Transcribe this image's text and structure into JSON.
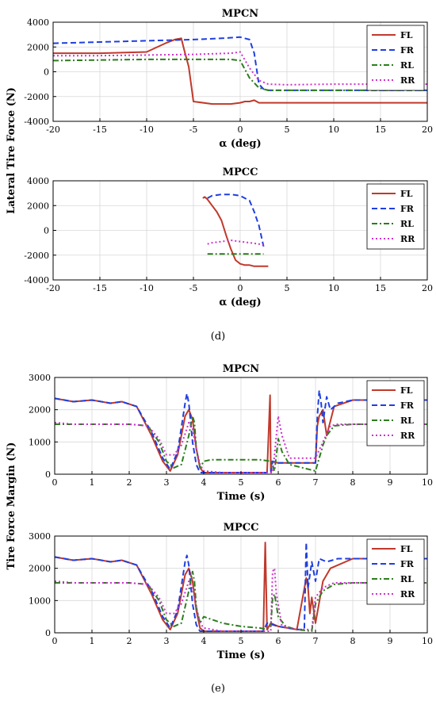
{
  "panel_labels": {
    "d": "(d)",
    "e": "(e)"
  },
  "colors": {
    "FL": "#c0392b",
    "FR": "#1f3fe0",
    "RL": "#2e7d1e",
    "RR": "#cc33cc",
    "grid": "#d8d8d8"
  },
  "chart_data": [
    {
      "id": "d1",
      "type": "line",
      "title": "MPCN",
      "xlabel": "α (deg)",
      "ylabel": "Lateral Tire Force (N)",
      "xlim": [
        -20,
        20
      ],
      "ylim": [
        -4000,
        4000
      ],
      "xticks": [
        -20,
        -15,
        -10,
        -5,
        0,
        5,
        10,
        15,
        20
      ],
      "yticks": [
        -4000,
        -2000,
        0,
        2000,
        4000
      ],
      "grid": true,
      "legend": "top-right",
      "series": [
        {
          "name": "FL",
          "style": "solid",
          "x": [
            -20,
            -15,
            -10,
            -8,
            -7,
            -6.3,
            -6,
            -5.5,
            -5,
            -3,
            -1,
            0,
            0.5,
            1,
            1.5,
            2,
            2.5,
            3,
            5,
            10,
            15,
            20
          ],
          "y": [
            1500,
            1500,
            1600,
            2300,
            2600,
            2700,
            1800,
            400,
            -2400,
            -2600,
            -2600,
            -2500,
            -2400,
            -2400,
            -2300,
            -2500,
            -2500,
            -2500,
            -2500,
            -2500,
            -2500,
            -2500
          ]
        },
        {
          "name": "FR",
          "style": "dashed",
          "x": [
            -20,
            -15,
            -10,
            -5,
            -2,
            0,
            1,
            1.5,
            2,
            2.5,
            3,
            5,
            10,
            15,
            20
          ],
          "y": [
            2300,
            2400,
            2500,
            2600,
            2700,
            2800,
            2600,
            1500,
            -1000,
            -1400,
            -1500,
            -1500,
            -1500,
            -1500,
            -1500
          ]
        },
        {
          "name": "RL",
          "style": "dashdot",
          "x": [
            -20,
            -15,
            -10,
            -5,
            -1,
            0,
            1,
            2,
            3,
            5,
            10,
            15,
            20
          ],
          "y": [
            900,
            950,
            1000,
            1000,
            1000,
            900,
            -500,
            -1300,
            -1500,
            -1500,
            -1500,
            -1500,
            -1500
          ]
        },
        {
          "name": "RR",
          "style": "dotted",
          "x": [
            -20,
            -15,
            -10,
            -5,
            -1,
            0,
            1,
            2,
            3,
            5,
            10,
            15,
            20
          ],
          "y": [
            1300,
            1300,
            1350,
            1400,
            1500,
            1600,
            300,
            -700,
            -1000,
            -1050,
            -1000,
            -1000,
            -1000
          ]
        }
      ]
    },
    {
      "id": "d2",
      "type": "line",
      "title": "MPCC",
      "xlabel": "α (deg)",
      "ylabel": "",
      "xlim": [
        -20,
        20
      ],
      "ylim": [
        -4000,
        4000
      ],
      "xticks": [
        -20,
        -15,
        -10,
        -5,
        0,
        5,
        10,
        15,
        20
      ],
      "yticks": [
        -4000,
        -2000,
        0,
        2000,
        4000
      ],
      "grid": true,
      "legend": "top-right",
      "series": [
        {
          "name": "FL",
          "style": "solid",
          "x": [
            -4,
            -3.8,
            -3.5,
            -3,
            -2.5,
            -2,
            -1.5,
            -1,
            -0.5,
            0,
            0.5,
            1,
            1.5,
            2,
            2.5,
            3
          ],
          "y": [
            2600,
            2700,
            2500,
            2000,
            1500,
            800,
            -400,
            -1500,
            -2400,
            -2700,
            -2800,
            -2800,
            -2900,
            -2900,
            -2900,
            -2900
          ]
        },
        {
          "name": "FR",
          "style": "dashed",
          "x": [
            -3.5,
            -3,
            -2,
            -1,
            0,
            1,
            1.5,
            2,
            2.5
          ],
          "y": [
            2600,
            2800,
            2900,
            2900,
            2800,
            2400,
            1500,
            400,
            -1300
          ]
        },
        {
          "name": "RL",
          "style": "dashdot",
          "x": [
            -3.5,
            -2,
            -1,
            0,
            0.5,
            1,
            1.5,
            2,
            2.5
          ],
          "y": [
            -1900,
            -1900,
            -1900,
            -1900,
            -1900,
            -1900,
            -1900,
            -1900,
            -1900
          ]
        },
        {
          "name": "RR",
          "style": "dotted",
          "x": [
            -3.5,
            -3,
            -2,
            -1,
            0,
            1,
            2,
            2.5
          ],
          "y": [
            -1100,
            -1000,
            -900,
            -800,
            -900,
            -1000,
            -1100,
            -1200
          ]
        }
      ]
    },
    {
      "id": "e1",
      "type": "line",
      "title": "MPCN",
      "xlabel": "Time (s)",
      "ylabel": "Tire Force Margin (N)",
      "xlim": [
        0,
        10
      ],
      "ylim": [
        0,
        3000
      ],
      "xticks": [
        0,
        1,
        2,
        3,
        4,
        5,
        6,
        7,
        8,
        9,
        10
      ],
      "yticks": [
        0,
        1000,
        2000,
        3000
      ],
      "grid": true,
      "legend": "top-right",
      "series": [
        {
          "name": "FL",
          "style": "solid",
          "x": [
            0,
            0.5,
            1,
            1.5,
            1.8,
            2.2,
            2.6,
            2.9,
            3.1,
            3.3,
            3.5,
            3.6,
            3.7,
            3.8,
            3.9,
            4.0,
            4.2,
            5,
            5.7,
            5.78,
            5.8,
            5.82,
            6,
            7,
            7.05,
            7.1,
            7.2,
            7.3,
            7.5,
            8,
            9,
            10
          ],
          "y": [
            2350,
            2250,
            2300,
            2200,
            2250,
            2100,
            1200,
            400,
            100,
            600,
            1800,
            2000,
            1700,
            800,
            200,
            50,
            50,
            50,
            50,
            2450,
            100,
            400,
            350,
            350,
            1500,
            1800,
            2000,
            1200,
            2100,
            2300,
            2300,
            2300
          ]
        },
        {
          "name": "FR",
          "style": "dashed",
          "x": [
            0,
            0.5,
            1,
            1.5,
            1.8,
            2.2,
            2.6,
            2.9,
            3.1,
            3.3,
            3.5,
            3.55,
            3.6,
            3.7,
            3.8,
            3.9,
            4.0,
            5,
            5.8,
            5.85,
            6,
            7,
            7.05,
            7.1,
            7.15,
            7.2,
            7.3,
            7.4,
            7.6,
            8,
            9,
            10
          ],
          "y": [
            2350,
            2250,
            2300,
            2200,
            2250,
            2100,
            1300,
            500,
            150,
            700,
            2200,
            2500,
            2200,
            1000,
            300,
            50,
            50,
            50,
            50,
            400,
            350,
            350,
            1800,
            2600,
            2200,
            1600,
            2400,
            2000,
            2200,
            2300,
            2300,
            2300
          ]
        },
        {
          "name": "RL",
          "style": "dashdot",
          "x": [
            0,
            0.5,
            1,
            1.5,
            2,
            2.5,
            2.8,
            3.0,
            3.2,
            3.4,
            3.6,
            3.7,
            3.75,
            3.8,
            3.9,
            4.0,
            4.2,
            5,
            5.5,
            5.8,
            5.9,
            6.0,
            6.1,
            6.3,
            7,
            7.2,
            7.3,
            7.5,
            8,
            9,
            10
          ],
          "y": [
            1550,
            1550,
            1550,
            1550,
            1550,
            1500,
            1000,
            400,
            200,
            300,
            1200,
            1800,
            1600,
            800,
            200,
            400,
            450,
            450,
            450,
            400,
            100,
            1100,
            700,
            300,
            100,
            900,
            1200,
            1500,
            1550,
            1550,
            1550
          ]
        },
        {
          "name": "RR",
          "style": "dotted",
          "x": [
            0,
            0.5,
            1,
            1.5,
            2,
            2.5,
            2.8,
            3.0,
            3.2,
            3.4,
            3.6,
            3.7,
            3.8,
            3.9,
            4.0,
            4.5,
            5,
            5.5,
            5.85,
            5.9,
            6.0,
            6.1,
            6.3,
            7,
            7.2,
            7.4,
            7.6,
            8,
            9,
            10
          ],
          "y": [
            1600,
            1550,
            1550,
            1550,
            1550,
            1500,
            1100,
            600,
            600,
            900,
            1600,
            1400,
            800,
            300,
            100,
            50,
            50,
            50,
            50,
            600,
            1800,
            1200,
            500,
            500,
            1000,
            1500,
            1550,
            1550,
            1550,
            1550
          ]
        }
      ]
    },
    {
      "id": "e2",
      "type": "line",
      "title": "MPCC",
      "xlabel": "Time (s)",
      "ylabel": "",
      "xlim": [
        0,
        10
      ],
      "ylim": [
        0,
        3000
      ],
      "xticks": [
        0,
        1,
        2,
        3,
        4,
        5,
        6,
        7,
        8,
        9,
        10
      ],
      "yticks": [
        0,
        1000,
        2000,
        3000
      ],
      "grid": true,
      "legend": "top-right",
      "series": [
        {
          "name": "FL",
          "style": "solid",
          "x": [
            0,
            0.5,
            1,
            1.5,
            1.8,
            2.2,
            2.6,
            2.9,
            3.1,
            3.3,
            3.5,
            3.6,
            3.7,
            3.8,
            3.9,
            4.0,
            5,
            5.6,
            5.65,
            5.7,
            5.8,
            6,
            6.5,
            6.75,
            6.8,
            6.85,
            6.9,
            7.0,
            7.2,
            7.4,
            8,
            9,
            10
          ],
          "y": [
            2350,
            2250,
            2300,
            2200,
            2250,
            2100,
            1200,
            400,
            100,
            600,
            1800,
            2000,
            1600,
            700,
            150,
            50,
            50,
            50,
            2800,
            100,
            300,
            200,
            100,
            1700,
            1400,
            600,
            1100,
            300,
            1600,
            2000,
            2300,
            2300,
            2300
          ]
        },
        {
          "name": "FR",
          "style": "dashed",
          "x": [
            0,
            0.5,
            1,
            1.5,
            1.8,
            2.2,
            2.6,
            2.9,
            3.1,
            3.3,
            3.5,
            3.55,
            3.6,
            3.7,
            3.8,
            3.9,
            4.0,
            5,
            5.6,
            5.7,
            6,
            6.5,
            6.7,
            6.75,
            6.8,
            6.9,
            7.0,
            7.1,
            7.3,
            7.6,
            8,
            9,
            10
          ],
          "y": [
            2350,
            2250,
            2300,
            2200,
            2250,
            2100,
            1300,
            500,
            150,
            700,
            2200,
            2400,
            2100,
            900,
            250,
            50,
            50,
            50,
            50,
            300,
            200,
            100,
            100,
            2800,
            1400,
            2200,
            1600,
            2300,
            2200,
            2300,
            2300,
            2300,
            2300
          ]
        },
        {
          "name": "RL",
          "style": "dashdot",
          "x": [
            0,
            0.5,
            1,
            1.5,
            2,
            2.5,
            2.8,
            3.0,
            3.2,
            3.4,
            3.6,
            3.7,
            3.75,
            3.8,
            3.9,
            4.0,
            4.5,
            5,
            5.5,
            5.7,
            5.8,
            5.85,
            5.9,
            6.0,
            6.2,
            6.5,
            6.9,
            7.0,
            7.2,
            7.5,
            8,
            9,
            10
          ],
          "y": [
            1550,
            1550,
            1550,
            1550,
            1550,
            1500,
            1000,
            400,
            200,
            300,
            1300,
            1900,
            1600,
            800,
            300,
            500,
            300,
            200,
            150,
            100,
            200,
            1100,
            1200,
            500,
            200,
            100,
            50,
            900,
            1300,
            1500,
            1550,
            1550,
            1550
          ]
        },
        {
          "name": "RR",
          "style": "dotted",
          "x": [
            0,
            0.5,
            1,
            1.5,
            2,
            2.5,
            2.8,
            3.0,
            3.2,
            3.4,
            3.6,
            3.7,
            3.8,
            3.9,
            4.0,
            4.5,
            5,
            5.5,
            5.8,
            5.85,
            5.9,
            5.95,
            6.1,
            6.5,
            6.9,
            7.0,
            7.2,
            7.5,
            8,
            9,
            10
          ],
          "y": [
            1600,
            1550,
            1550,
            1550,
            1550,
            1500,
            1100,
            600,
            600,
            900,
            1600,
            1400,
            800,
            300,
            150,
            50,
            50,
            50,
            50,
            1900,
            2000,
            1200,
            200,
            100,
            100,
            1100,
            1400,
            1550,
            1550,
            1550,
            1550
          ]
        }
      ]
    }
  ]
}
